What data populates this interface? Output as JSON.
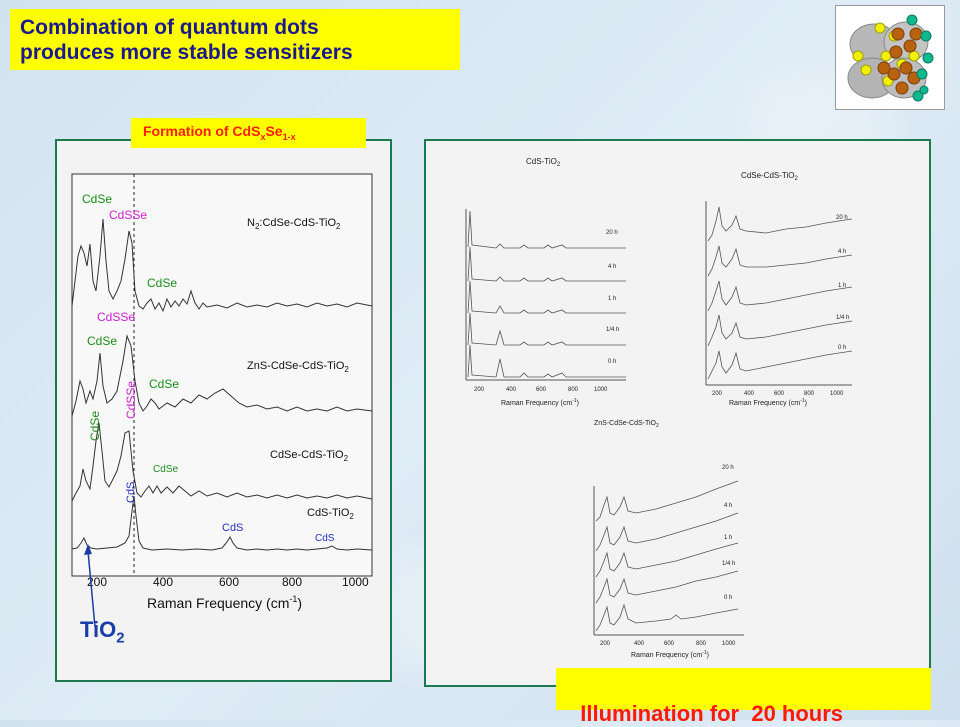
{
  "slide": {
    "title_line1": "Combination of quantum dots",
    "title_line2": "produces more stable sensitizers",
    "formation_prefix": "Formation of CdS",
    "formation_x": "x",
    "formation_se": "Se",
    "formation_1x": "1-x",
    "illumination": "Illumination for  20 hours",
    "tio2_label": "TiO",
    "tio2_sub": "2"
  },
  "colors": {
    "title_text": "#1a1a8c",
    "highlight": "#ffff00",
    "red_text": "#ff2000",
    "panel_border": "#1d7a4e",
    "cdse_green": "#1a8c1a",
    "cdsse_magenta": "#d020d0",
    "cds_blue": "#2030c0",
    "arrow_blue": "#1a3ea8"
  },
  "left_chart": {
    "xlabel_main": "Raman Frequency (cm",
    "xlabel_sup": "-1",
    "xlabel_end": ")",
    "ticks": [
      "200",
      "400",
      "600",
      "800",
      "1000"
    ],
    "spectra": [
      {
        "label_pre": "N",
        "label_sub1": "2",
        "label_mid": ":CdSe-CdS-TiO",
        "label_sub2": "2"
      },
      {
        "label_pre": "ZnS-CdSe-CdS-TiO",
        "label_sub2": "2"
      },
      {
        "label_pre": "CdSe-CdS-TiO",
        "label_sub2": "2"
      },
      {
        "label_pre": "CdS-TiO",
        "label_sub2": "2"
      }
    ],
    "annotations": {
      "cdse": "CdSe",
      "cdsse": "CdSSe",
      "cds": "CdS"
    }
  },
  "panel_a": {
    "title_pre": "CdS-TiO",
    "title_sub": "2",
    "labels": [
      "20 h",
      "4 h",
      "1 h",
      "1/4 h",
      "0 h"
    ],
    "ticks": [
      "200",
      "400",
      "600",
      "800",
      "1000"
    ],
    "xlabel_main": "Raman Frequency (cm",
    "xlabel_sup": "-1",
    "xlabel_end": ")"
  },
  "panel_b": {
    "title_pre": "CdSe-CdS-TiO",
    "title_sub": "2",
    "labels": [
      "20 h",
      "4 h",
      "1 h",
      "1/4 h",
      "0 h"
    ],
    "ticks": [
      "200",
      "400",
      "600",
      "800",
      "1000"
    ],
    "xlabel_main": "Raman Frequency (cm",
    "xlabel_sup": "-1",
    "xlabel_end": ")"
  },
  "panel_c": {
    "title_pre": "ZnS-CdSe-CdS-TiO",
    "title_sub": "2",
    "labels": [
      "20 h",
      "4 h",
      "1 h",
      "1/4 h",
      "0 h"
    ],
    "ticks": [
      "200",
      "400",
      "600",
      "800",
      "1000"
    ],
    "xlabel_main": "Raman Frequency (cm",
    "xlabel_sup": "-1",
    "xlabel_end": ")"
  }
}
